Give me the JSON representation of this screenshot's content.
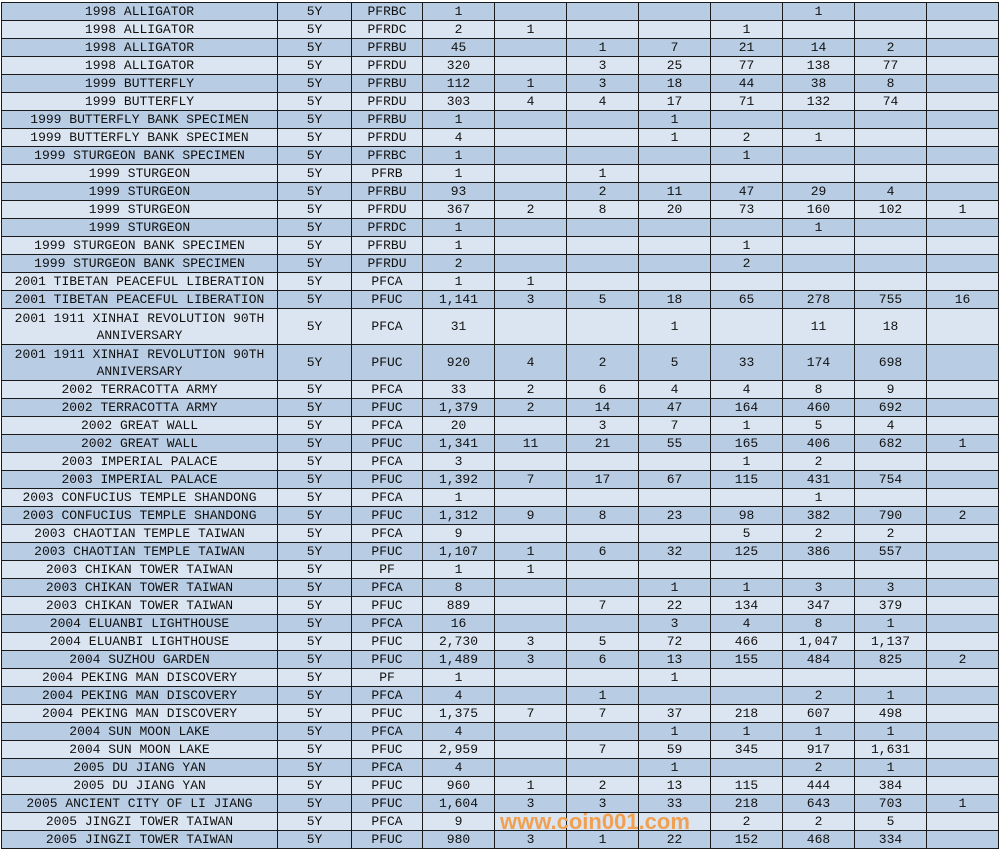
{
  "table": {
    "rows": [
      {
        "name": "1998 ALLIGATOR",
        "term": "5Y",
        "code": "PFRBC",
        "values": [
          "1",
          "",
          "",
          "",
          "",
          "1",
          "",
          ""
        ]
      },
      {
        "name": "1998 ALLIGATOR",
        "term": "5Y",
        "code": "PFRDC",
        "values": [
          "2",
          "1",
          "",
          "",
          "1",
          "",
          "",
          ""
        ]
      },
      {
        "name": "1998 ALLIGATOR",
        "term": "5Y",
        "code": "PFRBU",
        "values": [
          "45",
          "",
          "1",
          "7",
          "21",
          "14",
          "2",
          ""
        ]
      },
      {
        "name": "1998 ALLIGATOR",
        "term": "5Y",
        "code": "PFRDU",
        "values": [
          "320",
          "",
          "3",
          "25",
          "77",
          "138",
          "77",
          ""
        ]
      },
      {
        "name": "1999 BUTTERFLY",
        "term": "5Y",
        "code": "PFRBU",
        "values": [
          "112",
          "1",
          "3",
          "18",
          "44",
          "38",
          "8",
          ""
        ]
      },
      {
        "name": "1999 BUTTERFLY",
        "term": "5Y",
        "code": "PFRDU",
        "values": [
          "303",
          "4",
          "4",
          "17",
          "71",
          "132",
          "74",
          ""
        ]
      },
      {
        "name": "1999 BUTTERFLY BANK SPECIMEN",
        "term": "5Y",
        "code": "PFRBU",
        "values": [
          "1",
          "",
          "",
          "1",
          "",
          "",
          "",
          ""
        ]
      },
      {
        "name": "1999 BUTTERFLY BANK SPECIMEN",
        "term": "5Y",
        "code": "PFRDU",
        "values": [
          "4",
          "",
          "",
          "1",
          "2",
          "1",
          "",
          ""
        ]
      },
      {
        "name": "1999 STURGEON BANK SPECIMEN",
        "term": "5Y",
        "code": "PFRBC",
        "values": [
          "1",
          "",
          "",
          "",
          "1",
          "",
          "",
          ""
        ]
      },
      {
        "name": "1999 STURGEON",
        "term": "5Y",
        "code": "PFRB",
        "values": [
          "1",
          "",
          "1",
          "",
          "",
          "",
          "",
          ""
        ]
      },
      {
        "name": "1999 STURGEON",
        "term": "5Y",
        "code": "PFRBU",
        "values": [
          "93",
          "",
          "2",
          "11",
          "47",
          "29",
          "4",
          ""
        ]
      },
      {
        "name": "1999 STURGEON",
        "term": "5Y",
        "code": "PFRDU",
        "values": [
          "367",
          "2",
          "8",
          "20",
          "73",
          "160",
          "102",
          "1"
        ]
      },
      {
        "name": "1999 STURGEON",
        "term": "5Y",
        "code": "PFRDC",
        "values": [
          "1",
          "",
          "",
          "",
          "",
          "1",
          "",
          ""
        ]
      },
      {
        "name": "1999 STURGEON BANK SPECIMEN",
        "term": "5Y",
        "code": "PFRBU",
        "values": [
          "1",
          "",
          "",
          "",
          "1",
          "",
          "",
          ""
        ]
      },
      {
        "name": "1999 STURGEON BANK SPECIMEN",
        "term": "5Y",
        "code": "PFRDU",
        "values": [
          "2",
          "",
          "",
          "",
          "2",
          "",
          "",
          ""
        ]
      },
      {
        "name": "2001 TIBETAN PEACEFUL LIBERATION",
        "term": "5Y",
        "code": "PFCA",
        "values": [
          "1",
          "1",
          "",
          "",
          "",
          "",
          "",
          ""
        ]
      },
      {
        "name": "2001 TIBETAN PEACEFUL LIBERATION",
        "term": "5Y",
        "code": "PFUC",
        "values": [
          "1,141",
          "3",
          "5",
          "18",
          "65",
          "278",
          "755",
          "16"
        ]
      },
      {
        "name": "2001 1911 XINHAI REVOLUTION 90TH ANNIVERSARY",
        "term": "5Y",
        "code": "PFCA",
        "values": [
          "31",
          "",
          "",
          "1",
          "",
          "11",
          "18",
          ""
        ],
        "tall": true
      },
      {
        "name": "2001 1911 XINHAI REVOLUTION 90TH ANNIVERSARY",
        "term": "5Y",
        "code": "PFUC",
        "values": [
          "920",
          "4",
          "2",
          "5",
          "33",
          "174",
          "698",
          ""
        ],
        "tall": true
      },
      {
        "name": "2002 TERRACOTTA ARMY",
        "term": "5Y",
        "code": "PFCA",
        "values": [
          "33",
          "2",
          "6",
          "4",
          "4",
          "8",
          "9",
          ""
        ]
      },
      {
        "name": "2002 TERRACOTTA ARMY",
        "term": "5Y",
        "code": "PFUC",
        "values": [
          "1,379",
          "2",
          "14",
          "47",
          "164",
          "460",
          "692",
          ""
        ]
      },
      {
        "name": "2002 GREAT WALL",
        "term": "5Y",
        "code": "PFCA",
        "values": [
          "20",
          "",
          "3",
          "7",
          "1",
          "5",
          "4",
          ""
        ]
      },
      {
        "name": "2002 GREAT WALL",
        "term": "5Y",
        "code": "PFUC",
        "values": [
          "1,341",
          "11",
          "21",
          "55",
          "165",
          "406",
          "682",
          "1"
        ]
      },
      {
        "name": "2003 IMPERIAL PALACE",
        "term": "5Y",
        "code": "PFCA",
        "values": [
          "3",
          "",
          "",
          "",
          "1",
          "2",
          "",
          ""
        ]
      },
      {
        "name": "2003 IMPERIAL PALACE",
        "term": "5Y",
        "code": "PFUC",
        "values": [
          "1,392",
          "7",
          "17",
          "67",
          "115",
          "431",
          "754",
          ""
        ]
      },
      {
        "name": "2003 CONFUCIUS TEMPLE SHANDONG",
        "term": "5Y",
        "code": "PFCA",
        "values": [
          "1",
          "",
          "",
          "",
          "",
          "1",
          "",
          ""
        ]
      },
      {
        "name": "2003 CONFUCIUS TEMPLE SHANDONG",
        "term": "5Y",
        "code": "PFUC",
        "values": [
          "1,312",
          "9",
          "8",
          "23",
          "98",
          "382",
          "790",
          "2"
        ]
      },
      {
        "name": "2003 CHAOTIAN TEMPLE TAIWAN",
        "term": "5Y",
        "code": "PFCA",
        "values": [
          "9",
          "",
          "",
          "",
          "5",
          "2",
          "2",
          ""
        ]
      },
      {
        "name": "2003 CHAOTIAN TEMPLE TAIWAN",
        "term": "5Y",
        "code": "PFUC",
        "values": [
          "1,107",
          "1",
          "6",
          "32",
          "125",
          "386",
          "557",
          ""
        ]
      },
      {
        "name": "2003 CHIKAN TOWER TAIWAN",
        "term": "5Y",
        "code": "PF",
        "values": [
          "1",
          "1",
          "",
          "",
          "",
          "",
          "",
          ""
        ]
      },
      {
        "name": "2003 CHIKAN TOWER TAIWAN",
        "term": "5Y",
        "code": "PFCA",
        "values": [
          "8",
          "",
          "",
          "1",
          "1",
          "3",
          "3",
          ""
        ]
      },
      {
        "name": "2003 CHIKAN TOWER TAIWAN",
        "term": "5Y",
        "code": "PFUC",
        "values": [
          "889",
          "",
          "7",
          "22",
          "134",
          "347",
          "379",
          ""
        ]
      },
      {
        "name": "2004 ELUANBI LIGHTHOUSE",
        "term": "5Y",
        "code": "PFCA",
        "values": [
          "16",
          "",
          "",
          "3",
          "4",
          "8",
          "1",
          ""
        ]
      },
      {
        "name": "2004 ELUANBI LIGHTHOUSE",
        "term": "5Y",
        "code": "PFUC",
        "values": [
          "2,730",
          "3",
          "5",
          "72",
          "466",
          "1,047",
          "1,137",
          ""
        ]
      },
      {
        "name": "2004 SUZHOU GARDEN",
        "term": "5Y",
        "code": "PFUC",
        "values": [
          "1,489",
          "3",
          "6",
          "13",
          "155",
          "484",
          "825",
          "2"
        ]
      },
      {
        "name": "2004 PEKING MAN DISCOVERY",
        "term": "5Y",
        "code": "PF",
        "values": [
          "1",
          "",
          "",
          "1",
          "",
          "",
          "",
          ""
        ]
      },
      {
        "name": "2004 PEKING MAN DISCOVERY",
        "term": "5Y",
        "code": "PFCA",
        "values": [
          "4",
          "",
          "1",
          "",
          "",
          "2",
          "1",
          ""
        ]
      },
      {
        "name": "2004 PEKING MAN DISCOVERY",
        "term": "5Y",
        "code": "PFUC",
        "values": [
          "1,375",
          "7",
          "7",
          "37",
          "218",
          "607",
          "498",
          ""
        ]
      },
      {
        "name": "2004 SUN MOON LAKE",
        "term": "5Y",
        "code": "PFCA",
        "values": [
          "4",
          "",
          "",
          "1",
          "1",
          "1",
          "1",
          ""
        ]
      },
      {
        "name": "2004 SUN MOON LAKE",
        "term": "5Y",
        "code": "PFUC",
        "values": [
          "2,959",
          "",
          "7",
          "59",
          "345",
          "917",
          "1,631",
          ""
        ]
      },
      {
        "name": "2005 DU JIANG YAN",
        "term": "5Y",
        "code": "PFCA",
        "values": [
          "4",
          "",
          "",
          "1",
          "",
          "2",
          "1",
          ""
        ]
      },
      {
        "name": "2005 DU JIANG YAN",
        "term": "5Y",
        "code": "PFUC",
        "values": [
          "960",
          "1",
          "2",
          "13",
          "115",
          "444",
          "384",
          ""
        ]
      },
      {
        "name": "2005 ANCIENT CITY OF LI JIANG",
        "term": "5Y",
        "code": "PFUC",
        "values": [
          "1,604",
          "3",
          "3",
          "33",
          "218",
          "643",
          "703",
          "1"
        ]
      },
      {
        "name": "2005 JINGZI TOWER TAIWAN",
        "term": "5Y",
        "code": "PFCA",
        "values": [
          "9",
          "",
          "",
          "",
          "2",
          "2",
          "5",
          ""
        ]
      },
      {
        "name": "2005 JINGZI TOWER TAIWAN",
        "term": "5Y",
        "code": "PFUC",
        "values": [
          "980",
          "3",
          "1",
          "22",
          "152",
          "468",
          "334",
          ""
        ]
      }
    ],
    "colors": {
      "row_dark": "#b8cce4",
      "row_light": "#dbe5f1",
      "border": "#1a1a1a"
    }
  },
  "watermark": {
    "text": "www.coin001.com",
    "color": "#f0a050"
  }
}
